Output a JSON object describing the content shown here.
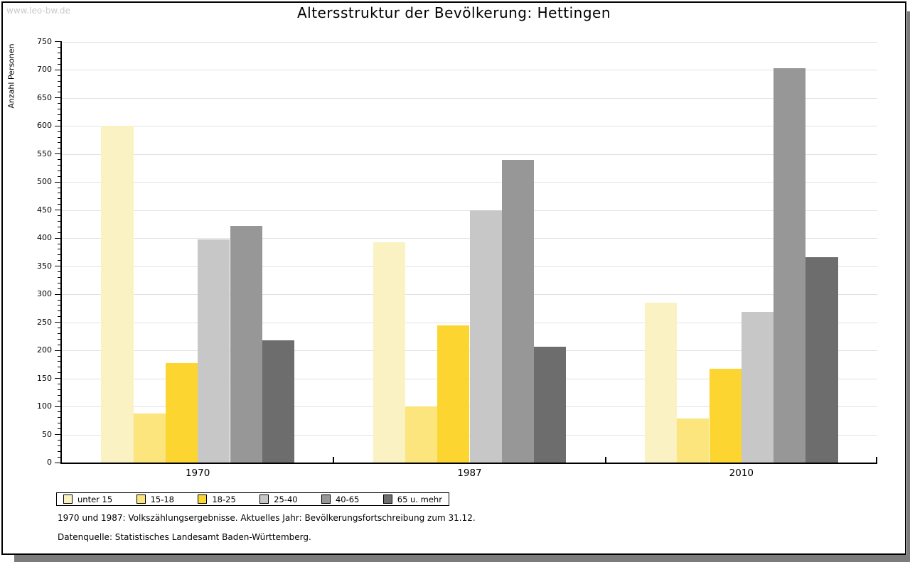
{
  "watermark": "www.leo-bw.de",
  "title": "Altersstruktur der Bevölkerung: Hettingen",
  "footer": {
    "line1": "1970 und 1987: Volkszählungsergebnisse. Aktuelles Jahr: Bevölkerungsfortschreibung zum 31.12.",
    "line2": "Datenquelle: Statistisches Landesamt Baden-Württemberg."
  },
  "chart_data": {
    "type": "bar",
    "title": "Altersstruktur der Bevölkerung: Hettingen",
    "ylabel": "Anzahl Personen",
    "xlabel": "",
    "ylim": [
      0,
      750
    ],
    "ytick_step": 50,
    "yticks": [
      0,
      50,
      100,
      150,
      200,
      250,
      300,
      350,
      400,
      450,
      500,
      550,
      600,
      650,
      700,
      750
    ],
    "minor_tick_step": 10,
    "grid": true,
    "legend_position": "bottom-left",
    "categories": [
      "1970",
      "1987",
      "2010"
    ],
    "series": [
      {
        "name": "unter 15",
        "color": "#FAF2C2",
        "values": [
          600,
          393,
          285
        ]
      },
      {
        "name": "15-18",
        "color": "#FBE57C",
        "values": [
          88,
          100,
          79
        ]
      },
      {
        "name": "18-25",
        "color": "#FCD530",
        "values": [
          177,
          245,
          167
        ]
      },
      {
        "name": "25-40",
        "color": "#C7C7C7",
        "values": [
          398,
          450,
          269
        ]
      },
      {
        "name": "40-65",
        "color": "#979797",
        "values": [
          422,
          539,
          703
        ]
      },
      {
        "name": "65 u. mehr",
        "color": "#6D6D6D",
        "values": [
          218,
          206,
          366
        ]
      }
    ],
    "colors": {
      "grid": "#E2E2E2",
      "axis": "#000000",
      "watermark": "#CACACA",
      "shadow": "#7C7C7C"
    }
  }
}
